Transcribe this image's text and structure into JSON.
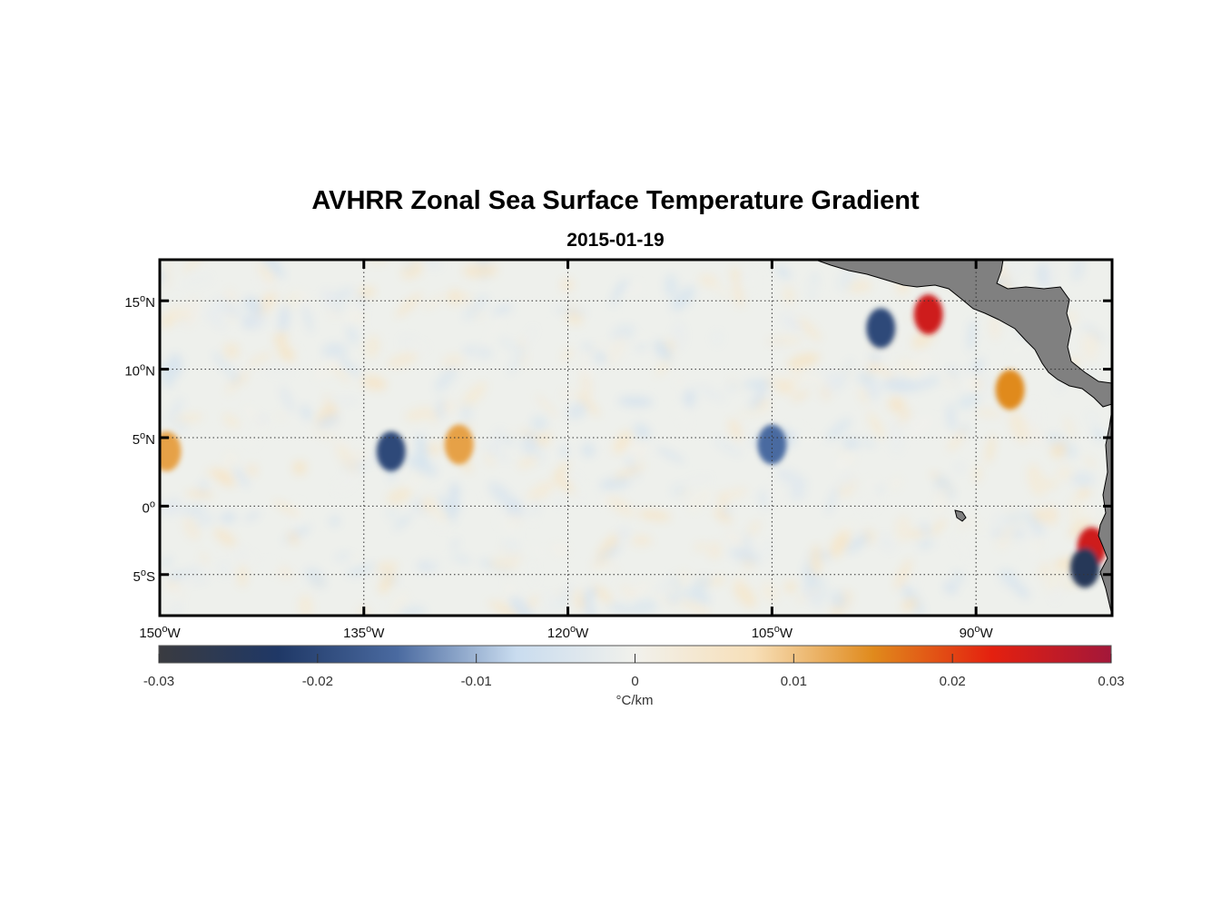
{
  "figure": {
    "title": "AVHRR Zonal Sea Surface Temperature Gradient",
    "subtitle": "2015-01-19"
  },
  "map": {
    "lon_range": [
      -150,
      -80
    ],
    "lat_range": [
      -8,
      18
    ],
    "lon_ticks": [
      {
        "value": -150,
        "deg": "150",
        "hem": "W"
      },
      {
        "value": -135,
        "deg": "135",
        "hem": "W"
      },
      {
        "value": -120,
        "deg": "120",
        "hem": "W"
      },
      {
        "value": -105,
        "deg": "105",
        "hem": "W"
      },
      {
        "value": -90,
        "deg": "90",
        "hem": "W"
      }
    ],
    "lat_ticks": [
      {
        "value": 15,
        "deg": "15",
        "hem": "N"
      },
      {
        "value": 10,
        "deg": "10",
        "hem": "N"
      },
      {
        "value": 5,
        "deg": "5",
        "hem": "N"
      },
      {
        "value": 0,
        "deg": "0",
        "hem": ""
      },
      {
        "value": -5,
        "deg": "5",
        "hem": "S"
      }
    ],
    "gridlines": "dotted",
    "land_color": "#808080",
    "features": [
      {
        "name": "Central America",
        "type": "land"
      },
      {
        "name": "South America",
        "type": "land"
      },
      {
        "name": "Galapagos",
        "type": "land"
      }
    ]
  },
  "colorbar": {
    "ticks": [
      "-0.03",
      "-0.02",
      "-0.01",
      "0",
      "0.01",
      "0.02",
      "0.03"
    ],
    "tick_values": [
      -0.03,
      -0.02,
      -0.01,
      0,
      0.01,
      0.02,
      0.03
    ],
    "label": "°C/km",
    "range": [
      -0.03,
      0.03
    ],
    "colormap": [
      "#3a3b40",
      "#1f3866",
      "#4a6aa0",
      "#c9dcef",
      "#f1f1ec",
      "#f7dfb8",
      "#e08a1c",
      "#e4200f",
      "#a3173a"
    ]
  },
  "chart_data": {
    "type": "heatmap",
    "title": "AVHRR Zonal Sea Surface Temperature Gradient",
    "subtitle": "2015-01-19",
    "x_range": [
      -150,
      -80
    ],
    "y_range": [
      -8,
      18
    ],
    "value_range": [
      -0.03,
      0.03
    ],
    "units": "°C/km",
    "notable_features": [
      {
        "lon": -93.5,
        "lat": 14.0,
        "value": 0.025
      },
      {
        "lon": -87.5,
        "lat": 8.5,
        "value": 0.015
      },
      {
        "lon": -81.5,
        "lat": -3.0,
        "value": 0.025
      },
      {
        "lon": -97.0,
        "lat": 13.0,
        "value": -0.02
      },
      {
        "lon": -82.0,
        "lat": -4.5,
        "value": -0.025
      },
      {
        "lon": -133.0,
        "lat": 4.0,
        "value": -0.02
      },
      {
        "lon": -128.0,
        "lat": 4.5,
        "value": 0.013
      },
      {
        "lon": -149.5,
        "lat": 4.0,
        "value": 0.013
      },
      {
        "lon": -105.0,
        "lat": 4.5,
        "value": -0.015
      }
    ]
  }
}
